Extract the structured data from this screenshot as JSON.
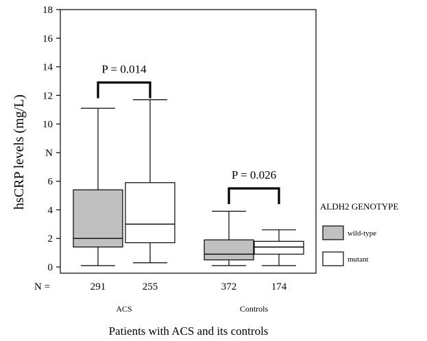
{
  "chart_data": {
    "type": "boxplot",
    "title": "",
    "ylabel": "hsCRP levels (mg/L)",
    "xlabel": "Patients with ACS and its controls",
    "ylim": [
      0,
      18
    ],
    "yticks": [
      {
        "value": 0,
        "label": "0"
      },
      {
        "value": 2,
        "label": "2"
      },
      {
        "value": 4,
        "label": "4"
      },
      {
        "value": 6,
        "label": "6"
      },
      {
        "value": 8,
        "label": "N"
      },
      {
        "value": 10,
        "label": "10"
      },
      {
        "value": 12,
        "label": "12"
      },
      {
        "value": 14,
        "label": "14"
      },
      {
        "value": 16,
        "label": "16"
      },
      {
        "value": 18,
        "label": "18"
      }
    ],
    "n_label": "N =",
    "groups": [
      {
        "label": "ACS",
        "n": [
          "291",
          "255"
        ]
      },
      {
        "label": "Controls",
        "n": [
          "372",
          "174"
        ]
      }
    ],
    "legend": {
      "title": "ALDH2 GENOTYPE",
      "position": "right",
      "entries": [
        {
          "name": "wild-type",
          "color": "#c0c0c0"
        },
        {
          "name": "mutant",
          "color": "#ffffff"
        }
      ]
    },
    "boxes": [
      {
        "group": "ACS",
        "series": "wild-type",
        "n": "291",
        "min": 0.1,
        "q1": 1.4,
        "median": 2.0,
        "q3": 5.4,
        "max": 11.1
      },
      {
        "group": "ACS",
        "series": "mutant",
        "n": "255",
        "min": 0.3,
        "q1": 1.7,
        "median": 3.0,
        "q3": 5.9,
        "max": 11.7
      },
      {
        "group": "Controls",
        "series": "wild-type",
        "n": "372",
        "min": 0.1,
        "q1": 0.5,
        "median": 0.9,
        "q3": 1.9,
        "max": 3.9
      },
      {
        "group": "Controls",
        "series": "mutant",
        "n": "174",
        "min": 0.1,
        "q1": 0.9,
        "median": 1.4,
        "q3": 1.8,
        "max": 2.6
      }
    ],
    "annotations": [
      {
        "group": "ACS",
        "text": "P = 0.014",
        "bracket_y": 12.9
      },
      {
        "group": "Controls",
        "text": "P = 0.026",
        "bracket_y": 5.5
      }
    ],
    "grid": false
  }
}
